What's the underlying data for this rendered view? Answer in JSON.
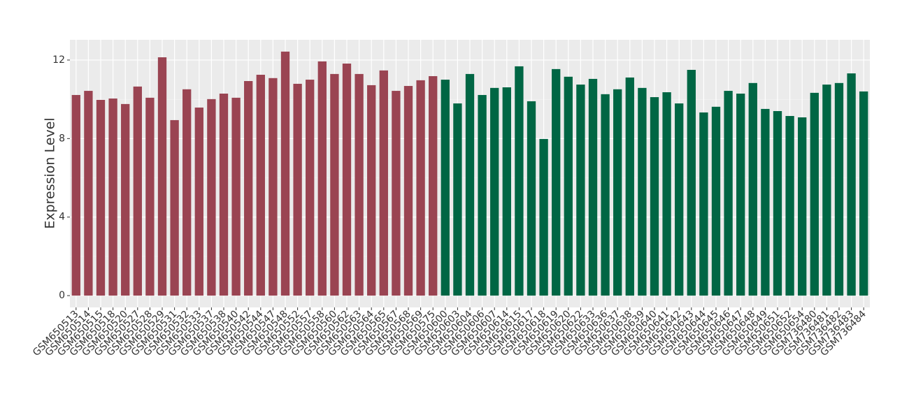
{
  "chart_data": {
    "type": "bar",
    "y_label": "Expression Level",
    "categories": [
      "GSM650513",
      "GSM650514",
      "GSM650515",
      "GSM650518",
      "GSM650520",
      "GSM650527",
      "GSM650528",
      "GSM650529",
      "GSM650531",
      "GSM650532",
      "GSM650533",
      "GSM650537",
      "GSM650538",
      "GSM650540",
      "GSM650542",
      "GSM650544",
      "GSM650547",
      "GSM650548",
      "GSM650552",
      "GSM650557",
      "GSM650558",
      "GSM650560",
      "GSM650562",
      "GSM650563",
      "GSM650564",
      "GSM650565",
      "GSM650567",
      "GSM650568",
      "GSM650569",
      "GSM650575",
      "GSM650600",
      "GSM650603",
      "GSM650604",
      "GSM650606",
      "GSM650607",
      "GSM650614",
      "GSM650615",
      "GSM650617",
      "GSM650618",
      "GSM650619",
      "GSM650620",
      "GSM650622",
      "GSM650633",
      "GSM650636",
      "GSM650637",
      "GSM650638",
      "GSM650639",
      "GSM650640",
      "GSM650641",
      "GSM650642",
      "GSM650643",
      "GSM650644",
      "GSM650645",
      "GSM650646",
      "GSM650647",
      "GSM650648",
      "GSM650649",
      "GSM650651",
      "GSM650652",
      "GSM650654",
      "GSM736480",
      "GSM736481",
      "GSM736482",
      "GSM736483",
      "GSM736484"
    ],
    "values": [
      10.22,
      10.43,
      9.97,
      10.04,
      9.76,
      10.65,
      10.08,
      12.14,
      8.94,
      10.51,
      9.58,
      10.01,
      10.29,
      10.08,
      10.93,
      11.25,
      11.08,
      12.43,
      10.79,
      11.0,
      11.93,
      11.29,
      11.82,
      11.29,
      10.72,
      11.47,
      10.43,
      10.68,
      10.97,
      11.18,
      11.0,
      9.79,
      11.29,
      10.22,
      10.58,
      10.61,
      11.68,
      9.9,
      7.98,
      11.54,
      11.15,
      10.75,
      11.04,
      10.26,
      10.51,
      11.11,
      10.58,
      10.11,
      10.36,
      9.79,
      11.5,
      9.33,
      9.62,
      10.43,
      10.29,
      10.83,
      9.51,
      9.4,
      9.15,
      9.08,
      10.33,
      10.75,
      10.83,
      11.32,
      10.4
    ],
    "colors": [
      "#9a4452",
      "#9a4452",
      "#9a4452",
      "#9a4452",
      "#9a4452",
      "#9a4452",
      "#9a4452",
      "#9a4452",
      "#9a4452",
      "#9a4452",
      "#9a4452",
      "#9a4452",
      "#9a4452",
      "#9a4452",
      "#9a4452",
      "#9a4452",
      "#9a4452",
      "#9a4452",
      "#9a4452",
      "#9a4452",
      "#9a4452",
      "#9a4452",
      "#9a4452",
      "#9a4452",
      "#9a4452",
      "#9a4452",
      "#9a4452",
      "#9a4452",
      "#9a4452",
      "#9a4452",
      "#006644",
      "#006644",
      "#006644",
      "#006644",
      "#006644",
      "#006644",
      "#006644",
      "#006644",
      "#006644",
      "#006644",
      "#006644",
      "#006644",
      "#006644",
      "#006644",
      "#006644",
      "#006644",
      "#006644",
      "#006644",
      "#006644",
      "#006644",
      "#006644",
      "#006644",
      "#006644",
      "#006644",
      "#006644",
      "#006644",
      "#006644",
      "#006644",
      "#006644",
      "#006644",
      "#006644",
      "#006644",
      "#006644",
      "#006644",
      "#006644"
    ],
    "ylim": [
      -0.6,
      13.03
    ],
    "yticks": [
      0,
      4,
      8,
      12
    ],
    "grid": true
  }
}
